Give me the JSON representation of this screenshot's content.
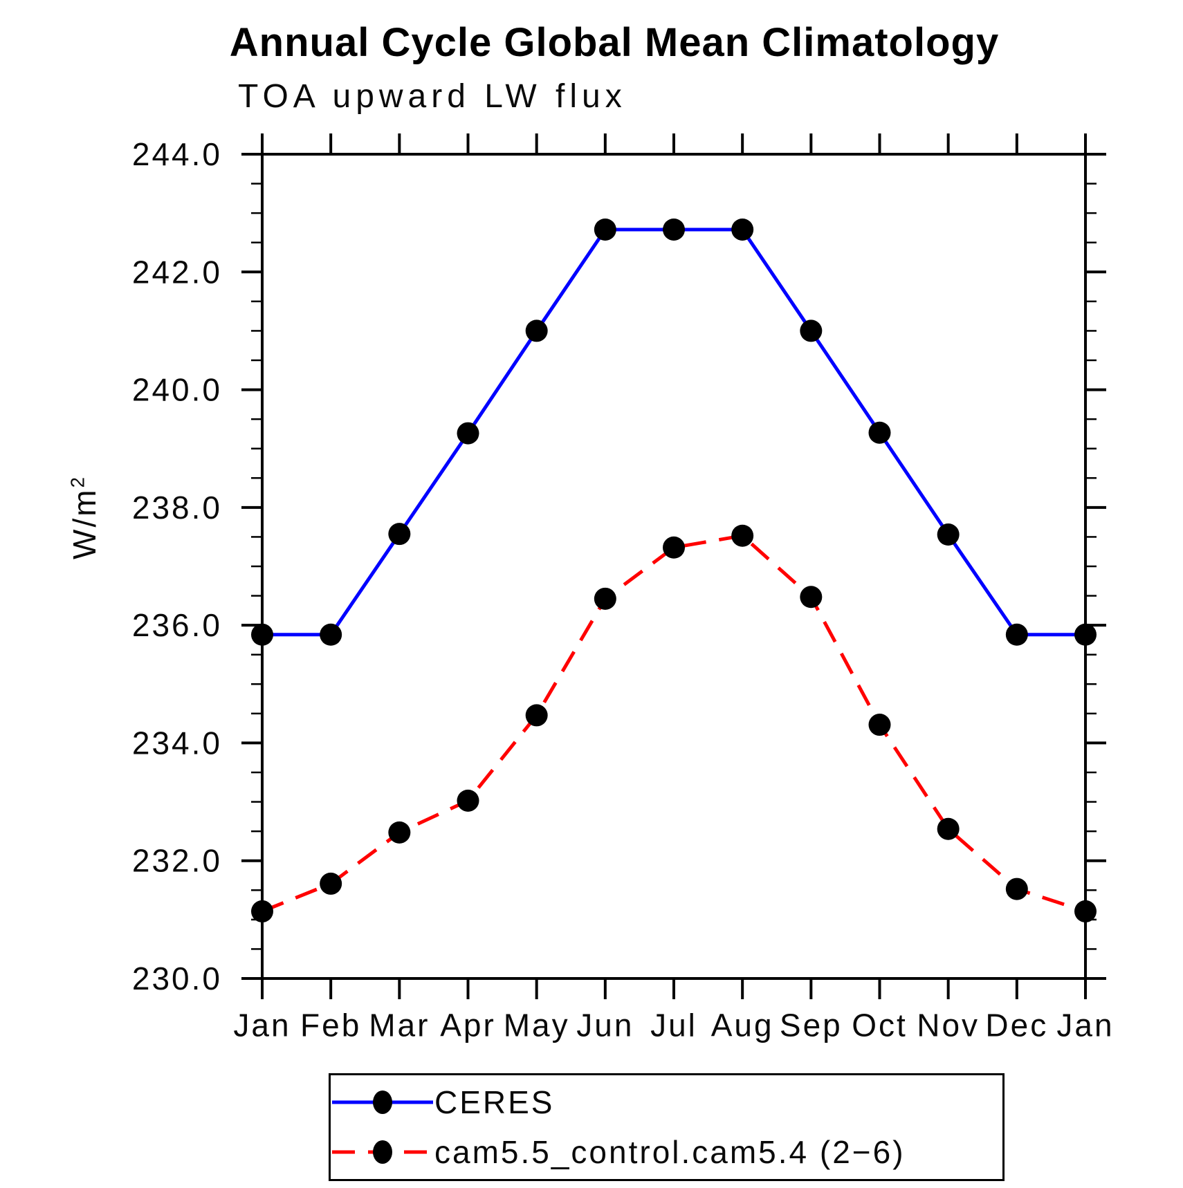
{
  "chart_data": {
    "type": "line",
    "title": "Annual Cycle Global Mean Climatology",
    "subtitle": "TOA upward LW flux",
    "ylabel_base": "W/m",
    "ylabel_exponent": "2",
    "categories": [
      "Jan",
      "Feb",
      "Mar",
      "Apr",
      "May",
      "Jun",
      "Jul",
      "Aug",
      "Sep",
      "Oct",
      "Nov",
      "Dec",
      "Jan"
    ],
    "series": [
      {
        "name": "CERES",
        "color": "#0000ff",
        "style": "solid",
        "marker": "black-circle",
        "values": [
          235.84,
          235.84,
          237.55,
          239.26,
          241.0,
          242.72,
          242.72,
          242.72,
          241.0,
          239.27,
          237.54,
          235.84,
          235.84
        ]
      },
      {
        "name": "cam5.5_control.cam5.4 (2−6)",
        "color": "#ff0000",
        "style": "dashed",
        "marker": "black-circle",
        "values": [
          231.14,
          231.61,
          232.48,
          233.02,
          234.47,
          236.45,
          237.32,
          237.52,
          236.48,
          234.31,
          232.54,
          231.52,
          231.14
        ]
      }
    ],
    "ylim": [
      230.0,
      244.0
    ],
    "ytick_step": 2.0,
    "yminor_step": 0.5,
    "ytick_labels": [
      "230.0",
      "232.0",
      "234.0",
      "236.0",
      "238.0",
      "240.0",
      "242.0",
      "244.0"
    ],
    "grid": false,
    "axes_style": "box-with-outward-mirrored-ticks",
    "legend_position": "bottom",
    "marker_color": "#000000"
  }
}
